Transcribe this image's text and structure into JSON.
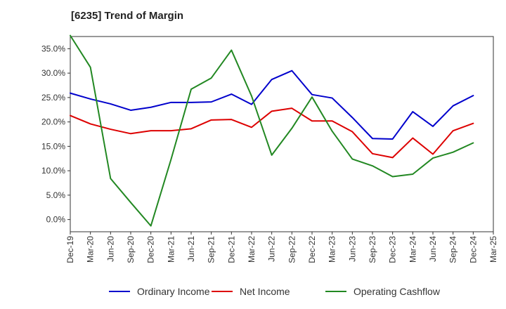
{
  "chart_data": {
    "type": "line",
    "title": "[6235]  Trend of Margin",
    "xlabel": "",
    "ylabel": "",
    "categories": [
      "Dec-19",
      "Mar-20",
      "Jun-20",
      "Sep-20",
      "Dec-20",
      "Mar-21",
      "Jun-21",
      "Sep-21",
      "Dec-21",
      "Mar-22",
      "Jun-22",
      "Sep-22",
      "Dec-22",
      "Mar-23",
      "Jun-23",
      "Sep-23",
      "Dec-23",
      "Mar-24",
      "Jun-24",
      "Sep-24",
      "Dec-24",
      "Mar-25"
    ],
    "ylim": [
      -2.5,
      37.5
    ],
    "yticks": [
      0,
      5,
      10,
      15,
      20,
      25,
      30,
      35
    ],
    "ytick_labels": [
      "0.0%",
      "5.0%",
      "10.0%",
      "15.0%",
      "20.0%",
      "25.0%",
      "30.0%",
      "35.0%"
    ],
    "grid": true,
    "legend_position": "bottom",
    "series": [
      {
        "name": "Ordinary Income",
        "color": "#0000cc",
        "values": [
          25.9,
          24.7,
          23.7,
          22.4,
          23.0,
          24.0,
          24.0,
          24.1,
          25.7,
          23.6,
          28.7,
          30.5,
          25.6,
          24.9,
          20.9,
          16.6,
          16.5,
          22.1,
          19.1,
          23.3,
          25.4,
          null
        ]
      },
      {
        "name": "Net Income",
        "color": "#dd0000",
        "values": [
          21.3,
          19.6,
          18.5,
          17.6,
          18.2,
          18.2,
          18.6,
          20.4,
          20.5,
          18.9,
          22.2,
          22.8,
          20.2,
          20.2,
          18.0,
          13.5,
          12.7,
          16.7,
          13.4,
          18.2,
          19.7,
          null
        ]
      },
      {
        "name": "Operating Cashflow",
        "color": "#228822",
        "values": [
          37.7,
          31.2,
          8.4,
          3.5,
          -1.3,
          12.3,
          26.7,
          29.0,
          34.7,
          25.3,
          13.2,
          18.7,
          25.1,
          18.1,
          12.4,
          11.0,
          8.8,
          9.3,
          12.6,
          13.8,
          15.7,
          null
        ]
      }
    ]
  }
}
